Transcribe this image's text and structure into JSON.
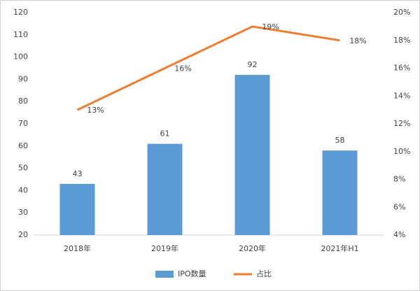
{
  "chart_data": {
    "type": "bar",
    "categories": [
      "2018年",
      "2019年",
      "2020年",
      "2021年H1"
    ],
    "series": [
      {
        "name": "IPO数量",
        "type": "bar",
        "color": "#5b9bd5",
        "values": [
          43,
          61,
          92,
          58
        ]
      },
      {
        "name": "占比",
        "type": "line",
        "axis": "y2",
        "color": "#ed7d31",
        "values": [
          13,
          16,
          19,
          18
        ],
        "value_labels": [
          "13%",
          "16%",
          "19%",
          "18%"
        ]
      }
    ],
    "ylim": [
      20,
      120
    ],
    "yticks": [
      20,
      30,
      40,
      50,
      60,
      70,
      80,
      90,
      100,
      110,
      120
    ],
    "y2lim": [
      4,
      20
    ],
    "y2ticks": [
      {
        "value": 4,
        "label": "4%"
      },
      {
        "value": 6,
        "label": "6%"
      },
      {
        "value": 8,
        "label": "8%"
      },
      {
        "value": 10,
        "label": "10%"
      },
      {
        "value": 12,
        "label": "12%"
      },
      {
        "value": 14,
        "label": "14%"
      },
      {
        "value": 16,
        "label": "16%"
      },
      {
        "value": 18,
        "label": "18%"
      },
      {
        "value": 20,
        "label": "20%"
      }
    ],
    "grid": false,
    "legend": "bottom"
  }
}
